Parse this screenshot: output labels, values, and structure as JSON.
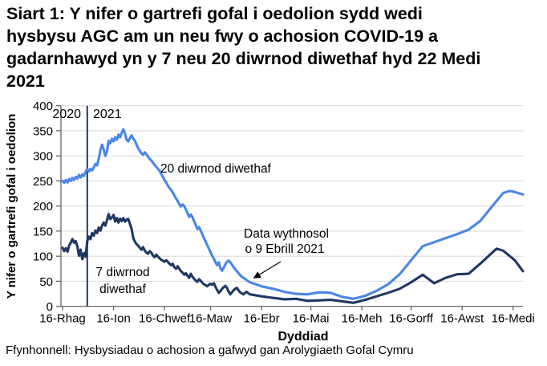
{
  "title": "Siart 1: Y nifer o gartrefi gofal i oedolion sydd wedi hysbysu AGC am un neu fwy o achosion COVID-19 a gadarnhawyd yn y 7 neu 20 diwrnod diwethaf hyd 22 Medi 2021",
  "title_lines": [
    "Siart 1: Y nifer o gartrefi gofal i oedolion sydd wedi",
    "hysbysu AGC am un neu fwy o achosion COVID-19 a",
    "gadarnhawyd yn y 7 neu 20 diwrnod diwethaf hyd 22 Medi",
    "2021"
  ],
  "source": "Ffynhonnell: Hysbysiadau o achosion a gafwyd gan Arolygiaeth Gofal Cymru",
  "chart_data": {
    "type": "line",
    "title": "Siart 1: Y nifer o gartrefi gofal i oedolion sydd wedi hysbysu AGC am un neu fwy o achosion COVID-19 a gadarnhawyd yn y 7 neu 20 diwrnod diwethaf hyd 22 Medi 2021",
    "xlabel": "Dyddiad",
    "ylabel": "Y nifer o gartrefi gofal i oedolion",
    "x_unit": "days from 16-Rhag (16 Dec 2020); daily values to 9 Ebrill 2021, weekly after",
    "x_domain": [
      0,
      280
    ],
    "ylim": [
      0,
      400
    ],
    "y_ticks": [
      0,
      50,
      100,
      150,
      200,
      250,
      300,
      350,
      400
    ],
    "x_ticks": [
      {
        "day": 0,
        "label": "16-Rhag"
      },
      {
        "day": 31,
        "label": "16-Ion"
      },
      {
        "day": 62,
        "label": "16-Chwef"
      },
      {
        "day": 90,
        "label": "16-Maw"
      },
      {
        "day": 121,
        "label": "16-Ebr"
      },
      {
        "day": 151,
        "label": "16-Mai"
      },
      {
        "day": 182,
        "label": "16-Meh"
      },
      {
        "day": 212,
        "label": "16-Gorff"
      },
      {
        "day": 243,
        "label": "16-Awst"
      },
      {
        "day": 274,
        "label": "16-Medi"
      }
    ],
    "grid": "horizontal",
    "legend_position": "none (inline labels)",
    "colors": {
      "grid": "#d9d9d9",
      "axis": "#595959"
    },
    "year_divider": {
      "day": 15,
      "left_label": "2020",
      "right_label": "2021"
    },
    "annotation": {
      "lines": [
        "Data wythnosol",
        "o 9 Ebrill 2021"
      ]
    },
    "series": [
      {
        "name": "20 diwrnod diwethaf",
        "label": "20 diwrnod diwethaf",
        "color": "#4a86e8",
        "points": [
          [
            0,
            250
          ],
          [
            1,
            246
          ],
          [
            2,
            252
          ],
          [
            3,
            247
          ],
          [
            4,
            254
          ],
          [
            5,
            250
          ],
          [
            6,
            256
          ],
          [
            7,
            252
          ],
          [
            8,
            258
          ],
          [
            9,
            255
          ],
          [
            10,
            262
          ],
          [
            11,
            257
          ],
          [
            12,
            263
          ],
          [
            13,
            260
          ],
          [
            14,
            268
          ],
          [
            15,
            274
          ],
          [
            16,
            269
          ],
          [
            17,
            274
          ],
          [
            18,
            271
          ],
          [
            19,
            277
          ],
          [
            20,
            284
          ],
          [
            21,
            281
          ],
          [
            22,
            294
          ],
          [
            23,
            312
          ],
          [
            24,
            322
          ],
          [
            25,
            313
          ],
          [
            26,
            300
          ],
          [
            27,
            308
          ],
          [
            28,
            330
          ],
          [
            29,
            325
          ],
          [
            30,
            334
          ],
          [
            31,
            329
          ],
          [
            32,
            337
          ],
          [
            33,
            332
          ],
          [
            34,
            342
          ],
          [
            35,
            337
          ],
          [
            36,
            346
          ],
          [
            37,
            353
          ],
          [
            38,
            344
          ],
          [
            39,
            332
          ],
          [
            40,
            329
          ],
          [
            41,
            336
          ],
          [
            42,
            341
          ],
          [
            43,
            334
          ],
          [
            44,
            330
          ],
          [
            45,
            322
          ],
          [
            46,
            315
          ],
          [
            47,
            310
          ],
          [
            48,
            305
          ],
          [
            49,
            302
          ],
          [
            50,
            307
          ],
          [
            51,
            303
          ],
          [
            52,
            298
          ],
          [
            53,
            294
          ],
          [
            54,
            291
          ],
          [
            55,
            286
          ],
          [
            56,
            282
          ],
          [
            57,
            278
          ],
          [
            58,
            274
          ],
          [
            59,
            270
          ],
          [
            60,
            264
          ],
          [
            61,
            258
          ],
          [
            62,
            252
          ],
          [
            63,
            247
          ],
          [
            64,
            241
          ],
          [
            65,
            236
          ],
          [
            66,
            232
          ],
          [
            67,
            227
          ],
          [
            68,
            221
          ],
          [
            69,
            215
          ],
          [
            70,
            210
          ],
          [
            71,
            204
          ],
          [
            72,
            199
          ],
          [
            73,
            203
          ],
          [
            74,
            200
          ],
          [
            75,
            193
          ],
          [
            76,
            186
          ],
          [
            77,
            178
          ],
          [
            78,
            183
          ],
          [
            79,
            178
          ],
          [
            80,
            170
          ],
          [
            81,
            162
          ],
          [
            82,
            154
          ],
          [
            83,
            158
          ],
          [
            84,
            151
          ],
          [
            85,
            144
          ],
          [
            86,
            136
          ],
          [
            87,
            129
          ],
          [
            88,
            122
          ],
          [
            89,
            115
          ],
          [
            90,
            108
          ],
          [
            91,
            101
          ],
          [
            92,
            95
          ],
          [
            93,
            88
          ],
          [
            94,
            82
          ],
          [
            95,
            88
          ],
          [
            96,
            76
          ],
          [
            97,
            71
          ],
          [
            98,
            77
          ],
          [
            99,
            84
          ],
          [
            100,
            89
          ],
          [
            101,
            91
          ],
          [
            102,
            88
          ],
          [
            103,
            83
          ],
          [
            104,
            78
          ],
          [
            105,
            74
          ],
          [
            106,
            70
          ],
          [
            107,
            66
          ],
          [
            108,
            62
          ],
          [
            109,
            59
          ],
          [
            110,
            57
          ],
          [
            111,
            55
          ],
          [
            112,
            52
          ],
          [
            113,
            50
          ],
          [
            114,
            48
          ],
          [
            121,
            40
          ],
          [
            128,
            35
          ],
          [
            135,
            29
          ],
          [
            142,
            25
          ],
          [
            149,
            24
          ],
          [
            156,
            28
          ],
          [
            163,
            27
          ],
          [
            170,
            19
          ],
          [
            177,
            15
          ],
          [
            184,
            21
          ],
          [
            191,
            31
          ],
          [
            198,
            44
          ],
          [
            205,
            64
          ],
          [
            212,
            92
          ],
          [
            219,
            120
          ],
          [
            226,
            128
          ],
          [
            233,
            136
          ],
          [
            240,
            144
          ],
          [
            247,
            153
          ],
          [
            254,
            170
          ],
          [
            261,
            198
          ],
          [
            268,
            226
          ],
          [
            272,
            230
          ],
          [
            275,
            228
          ],
          [
            280,
            223
          ]
        ]
      },
      {
        "name": "7 diwrnod diwethaf",
        "label": "7 diwrnod diwethaf",
        "label_lines": [
          "7 diwrnod",
          "diwethaf"
        ],
        "color": "#1f3864",
        "points": [
          [
            0,
            117
          ],
          [
            1,
            110
          ],
          [
            2,
            116
          ],
          [
            3,
            109
          ],
          [
            4,
            121
          ],
          [
            5,
            127
          ],
          [
            6,
            134
          ],
          [
            7,
            127
          ],
          [
            8,
            130
          ],
          [
            9,
            119
          ],
          [
            10,
            101
          ],
          [
            11,
            113
          ],
          [
            12,
            94
          ],
          [
            13,
            106
          ],
          [
            14,
            99
          ],
          [
            15,
            130
          ],
          [
            16,
            139
          ],
          [
            17,
            134
          ],
          [
            18,
            146
          ],
          [
            19,
            141
          ],
          [
            20,
            151
          ],
          [
            21,
            146
          ],
          [
            22,
            157
          ],
          [
            23,
            151
          ],
          [
            24,
            161
          ],
          [
            25,
            167
          ],
          [
            26,
            161
          ],
          [
            27,
            171
          ],
          [
            28,
            184
          ],
          [
            29,
            174
          ],
          [
            30,
            177
          ],
          [
            31,
            182
          ],
          [
            32,
            169
          ],
          [
            33,
            176
          ],
          [
            34,
            167
          ],
          [
            35,
            175
          ],
          [
            36,
            170
          ],
          [
            37,
            176
          ],
          [
            38,
            169
          ],
          [
            39,
            173
          ],
          [
            40,
            174
          ],
          [
            41,
            164
          ],
          [
            42,
            154
          ],
          [
            43,
            136
          ],
          [
            44,
            129
          ],
          [
            45,
            124
          ],
          [
            46,
            121
          ],
          [
            47,
            117
          ],
          [
            48,
            113
          ],
          [
            49,
            118
          ],
          [
            50,
            111
          ],
          [
            51,
            107
          ],
          [
            52,
            105
          ],
          [
            53,
            110
          ],
          [
            54,
            107
          ],
          [
            55,
            101
          ],
          [
            56,
            98
          ],
          [
            57,
            103
          ],
          [
            58,
            99
          ],
          [
            59,
            96
          ],
          [
            60,
            93
          ],
          [
            61,
            91
          ],
          [
            62,
            89
          ],
          [
            63,
            92
          ],
          [
            64,
            89
          ],
          [
            65,
            85
          ],
          [
            66,
            82
          ],
          [
            67,
            85
          ],
          [
            68,
            78
          ],
          [
            69,
            75
          ],
          [
            70,
            80
          ],
          [
            71,
            75
          ],
          [
            72,
            70
          ],
          [
            73,
            67
          ],
          [
            74,
            63
          ],
          [
            75,
            66
          ],
          [
            76,
            61
          ],
          [
            77,
            57
          ],
          [
            78,
            65
          ],
          [
            79,
            59
          ],
          [
            80,
            55
          ],
          [
            81,
            51
          ],
          [
            82,
            49
          ],
          [
            83,
            54
          ],
          [
            84,
            51
          ],
          [
            85,
            47
          ],
          [
            86,
            44
          ],
          [
            87,
            42
          ],
          [
            88,
            40
          ],
          [
            89,
            43
          ],
          [
            90,
            45
          ],
          [
            91,
            43
          ],
          [
            92,
            46
          ],
          [
            93,
            39
          ],
          [
            94,
            33
          ],
          [
            95,
            27
          ],
          [
            96,
            30
          ],
          [
            97,
            35
          ],
          [
            98,
            38
          ],
          [
            99,
            41
          ],
          [
            100,
            37
          ],
          [
            101,
            29
          ],
          [
            102,
            24
          ],
          [
            103,
            28
          ],
          [
            104,
            32
          ],
          [
            105,
            35
          ],
          [
            106,
            37
          ],
          [
            107,
            32
          ],
          [
            108,
            28
          ],
          [
            109,
            26
          ],
          [
            110,
            24
          ],
          [
            111,
            27
          ],
          [
            112,
            29
          ],
          [
            113,
            26
          ],
          [
            114,
            24
          ],
          [
            121,
            20
          ],
          [
            128,
            17
          ],
          [
            135,
            14
          ],
          [
            142,
            15
          ],
          [
            149,
            11
          ],
          [
            156,
            12
          ],
          [
            163,
            13
          ],
          [
            170,
            10
          ],
          [
            177,
            7
          ],
          [
            184,
            13
          ],
          [
            191,
            20
          ],
          [
            198,
            27
          ],
          [
            205,
            35
          ],
          [
            212,
            48
          ],
          [
            219,
            63
          ],
          [
            226,
            46
          ],
          [
            233,
            57
          ],
          [
            240,
            64
          ],
          [
            247,
            65
          ],
          [
            254,
            85
          ],
          [
            261,
            106
          ],
          [
            264,
            115
          ],
          [
            268,
            111
          ],
          [
            275,
            92
          ],
          [
            280,
            70
          ]
        ]
      }
    ]
  }
}
